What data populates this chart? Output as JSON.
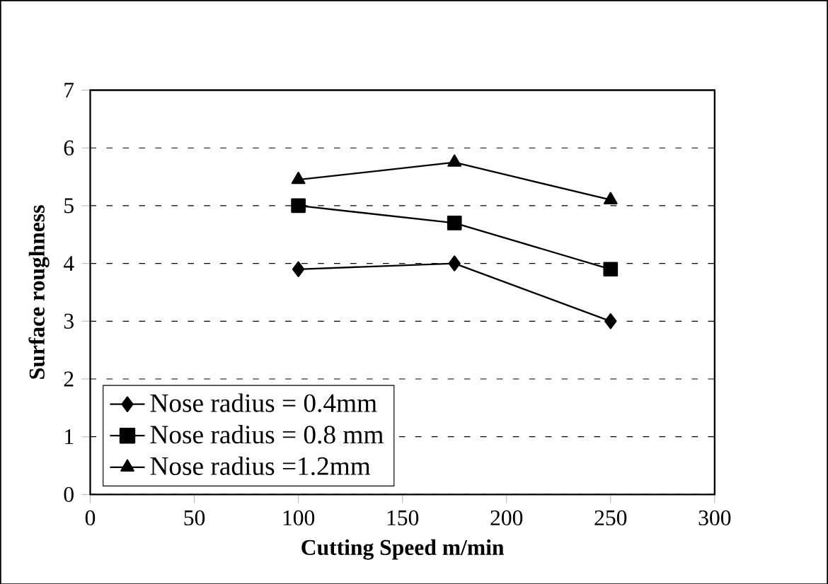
{
  "chart_data": {
    "type": "line",
    "xlabel": "Cutting Speed m/min",
    "ylabel": "Surface roughness",
    "xlim": [
      0,
      300
    ],
    "xticks": [
      0,
      50,
      100,
      150,
      200,
      250,
      300
    ],
    "ylim": [
      0,
      7
    ],
    "yticks": [
      0,
      1,
      2,
      3,
      4,
      5,
      6,
      7
    ],
    "grid": "y",
    "legend": "bottom left",
    "line_style": "solid",
    "series": [
      {
        "name": "Nose radius = 0.4mm",
        "color": "#000000",
        "marker": "diamond",
        "x": [
          100,
          175,
          250
        ],
        "values": [
          3.9,
          4.0,
          3.0
        ]
      },
      {
        "name": "Nose radius = 0.8 mm",
        "color": "#000000",
        "marker": "square",
        "x": [
          100,
          175,
          250
        ],
        "values": [
          5.0,
          4.7,
          3.9
        ]
      },
      {
        "name": "Nose radius =1.2mm",
        "color": "#000000",
        "marker": "triangle",
        "x": [
          100,
          175,
          250
        ],
        "values": [
          5.45,
          5.75,
          5.1
        ]
      }
    ]
  }
}
